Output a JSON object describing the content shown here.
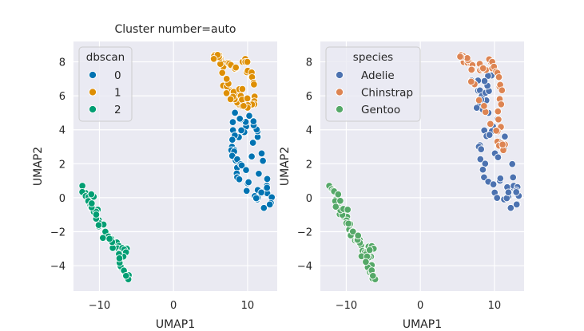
{
  "chart_data": [
    {
      "type": "scatter",
      "title": "Cluster number=auto",
      "xlabel": "UMAP1",
      "ylabel": "UMAP2",
      "xlim": [
        -13.5,
        14
      ],
      "ylim": [
        -5.5,
        9.2
      ],
      "xticks": [
        -10,
        0,
        10
      ],
      "yticks": [
        -4,
        -2,
        0,
        2,
        4,
        6,
        8
      ],
      "grid": true,
      "background": "#eaeaf2",
      "legend": {
        "title": "dbscan",
        "placement": "upper-left"
      },
      "series": [
        {
          "name": "0",
          "color": "#0173b2",
          "region": [
            [
              9.8,
              4.2
            ],
            [
              7.9,
              3.0
            ],
            [
              8.6,
              1.2
            ],
            [
              11.3,
              -0.1
            ],
            [
              12.6,
              0.7
            ],
            [
              13.0,
              -0.4
            ],
            [
              11.4,
              3.6
            ],
            [
              10.8,
              4.5
            ],
            [
              8.3,
              5.0
            ],
            [
              7.8,
              2.8
            ],
            [
              9.2,
              1.9
            ],
            [
              12.2,
              -0.6
            ]
          ]
        },
        {
          "name": "1",
          "color": "#de8f05",
          "region": [
            [
              5.5,
              8.4
            ],
            [
              6.8,
              7.9
            ],
            [
              8.3,
              7.6
            ],
            [
              9.7,
              8.0
            ],
            [
              10.6,
              7.1
            ],
            [
              10.9,
              5.5
            ],
            [
              8.6,
              5.6
            ],
            [
              6.7,
              6.6
            ],
            [
              9.3,
              6.4
            ],
            [
              10.0,
              5.3
            ],
            [
              7.7,
              5.8
            ],
            [
              6.2,
              8.2
            ]
          ]
        },
        {
          "name": "2",
          "color": "#029e73",
          "region": [
            [
              -12.3,
              0.7
            ],
            [
              -11.5,
              -0.2
            ],
            [
              -10.4,
              -1.1
            ],
            [
              -9.2,
              -2.0
            ],
            [
              -8.0,
              -2.8
            ],
            [
              -7.2,
              -3.2
            ],
            [
              -6.3,
              -3.0
            ],
            [
              -7.1,
              -4.1
            ],
            [
              -6.1,
              -4.8
            ],
            [
              -10.0,
              -1.5
            ],
            [
              -11.1,
              0.2
            ],
            [
              -6.4,
              -4.6
            ]
          ]
        }
      ]
    },
    {
      "type": "scatter",
      "title": "",
      "xlabel": "UMAP1",
      "ylabel": "UMAP2",
      "xlim": [
        -13.5,
        14
      ],
      "ylim": [
        -5.5,
        9.2
      ],
      "xticks": [
        -10,
        0,
        10
      ],
      "yticks": [
        -4,
        -2,
        0,
        2,
        4,
        6,
        8
      ],
      "grid": true,
      "background": "#eaeaf2",
      "legend": {
        "title": "species",
        "placement": "upper-left"
      },
      "series": [
        {
          "name": "Adelie",
          "color": "#4c72b0",
          "region": [
            [
              9.8,
              4.2
            ],
            [
              7.9,
              3.0
            ],
            [
              8.6,
              1.2
            ],
            [
              11.3,
              -0.1
            ],
            [
              12.6,
              0.7
            ],
            [
              13.0,
              -0.4
            ],
            [
              11.4,
              3.6
            ],
            [
              7.8,
              6.3
            ],
            [
              8.4,
              5.2
            ],
            [
              9.6,
              7.2
            ],
            [
              6.9,
              6.9
            ],
            [
              12.2,
              -0.6
            ]
          ]
        },
        {
          "name": "Chinstrap",
          "color": "#dd8452",
          "region": [
            [
              5.5,
              8.4
            ],
            [
              6.8,
              7.9
            ],
            [
              8.3,
              7.6
            ],
            [
              9.7,
              8.0
            ],
            [
              10.6,
              7.1
            ],
            [
              10.9,
              5.5
            ],
            [
              10.4,
              3.3
            ],
            [
              11.2,
              2.8
            ],
            [
              8.6,
              5.4
            ],
            [
              6.2,
              8.2
            ]
          ]
        },
        {
          "name": "Gentoo",
          "color": "#55a868",
          "region": [
            [
              -12.3,
              0.7
            ],
            [
              -11.5,
              -0.2
            ],
            [
              -10.4,
              -1.1
            ],
            [
              -9.2,
              -2.0
            ],
            [
              -8.0,
              -2.8
            ],
            [
              -7.2,
              -3.2
            ],
            [
              -6.3,
              -3.0
            ],
            [
              -7.1,
              -4.1
            ],
            [
              -6.1,
              -4.8
            ],
            [
              -10.0,
              -1.5
            ],
            [
              -11.1,
              0.2
            ],
            [
              -6.4,
              -4.6
            ]
          ]
        }
      ]
    }
  ]
}
